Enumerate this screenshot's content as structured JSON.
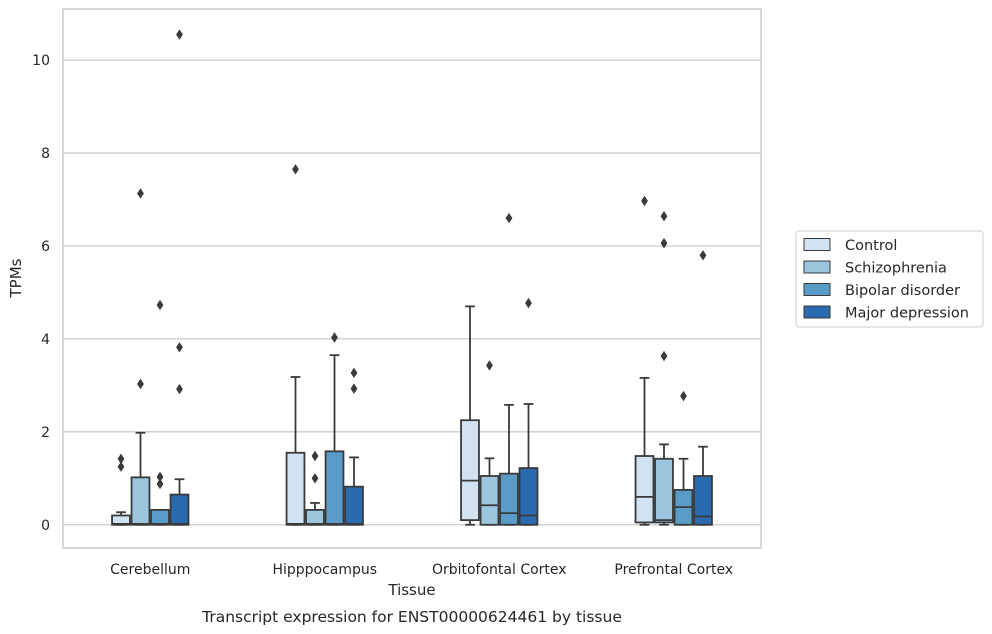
{
  "caption": "Transcript expression for ENST00000624461 by tissue",
  "chart_data": {
    "type": "box",
    "xlabel": "Tissue",
    "ylabel": "TPMs",
    "ylim": [
      -0.5,
      11.1
    ],
    "yticks": [
      0,
      2,
      4,
      6,
      8,
      10
    ],
    "grid": "horizontal",
    "legend_position": "right",
    "categories": [
      "Cerebellum",
      "Hipppocampus",
      "Orbitofontal Cortex",
      "Prefrontal Cortex"
    ],
    "series": [
      {
        "name": "Control",
        "color": "#d1e2f2",
        "boxes": [
          {
            "whislo": 0,
            "q1": 0,
            "med": 0.02,
            "q3": 0.2,
            "whishi": 0.27,
            "fliers": [
              1.25,
              1.42
            ]
          },
          {
            "whislo": 0,
            "q1": 0,
            "med": 0.02,
            "q3": 1.55,
            "whishi": 3.18,
            "fliers": [
              7.65
            ]
          },
          {
            "whislo": 0,
            "q1": 0.1,
            "med": 0.95,
            "q3": 2.25,
            "whishi": 4.7,
            "fliers": []
          },
          {
            "whislo": 0,
            "q1": 0.05,
            "med": 0.6,
            "q3": 1.48,
            "whishi": 3.16,
            "fliers": [
              6.97
            ]
          }
        ]
      },
      {
        "name": "Schizophrenia",
        "color": "#9bc6de",
        "boxes": [
          {
            "whislo": 0,
            "q1": 0,
            "med": 0.02,
            "q3": 1.02,
            "whishi": 1.98,
            "fliers": [
              3.03,
              7.13
            ]
          },
          {
            "whislo": 0,
            "q1": 0,
            "med": 0.02,
            "q3": 0.32,
            "whishi": 0.47,
            "fliers": [
              1.0,
              1.48
            ]
          },
          {
            "whislo": 0,
            "q1": 0,
            "med": 0.42,
            "q3": 1.05,
            "whishi": 1.43,
            "fliers": [
              3.43
            ]
          },
          {
            "whislo": 0,
            "q1": 0.05,
            "med": 0.1,
            "q3": 1.42,
            "whishi": 1.73,
            "fliers": [
              3.63,
              6.06,
              6.64
            ]
          }
        ]
      },
      {
        "name": "Bipolar disorder",
        "color": "#5a9cc8",
        "boxes": [
          {
            "whislo": 0,
            "q1": 0,
            "med": 0.02,
            "q3": 0.32,
            "whishi": 0.32,
            "fliers": [
              0.88,
              1.03,
              4.73
            ]
          },
          {
            "whislo": 0,
            "q1": 0,
            "med": 0.02,
            "q3": 1.58,
            "whishi": 3.65,
            "fliers": [
              4.03
            ]
          },
          {
            "whislo": 0,
            "q1": 0,
            "med": 0.25,
            "q3": 1.1,
            "whishi": 2.58,
            "fliers": [
              6.6
            ]
          },
          {
            "whislo": 0,
            "q1": 0,
            "med": 0.38,
            "q3": 0.75,
            "whishi": 1.42,
            "fliers": [
              2.77
            ]
          }
        ]
      },
      {
        "name": "Major depression",
        "color": "#2a6aae",
        "boxes": [
          {
            "whislo": 0,
            "q1": 0,
            "med": 0.02,
            "q3": 0.65,
            "whishi": 0.98,
            "fliers": [
              2.92,
              3.82,
              10.55
            ]
          },
          {
            "whislo": 0,
            "q1": 0,
            "med": 0.02,
            "q3": 0.82,
            "whishi": 1.45,
            "fliers": [
              2.93,
              3.27
            ]
          },
          {
            "whislo": 0,
            "q1": 0,
            "med": 0.2,
            "q3": 1.22,
            "whishi": 2.6,
            "fliers": [
              4.77
            ]
          },
          {
            "whislo": 0,
            "q1": 0,
            "med": 0.18,
            "q3": 1.05,
            "whishi": 1.68,
            "fliers": [
              5.8
            ]
          }
        ]
      }
    ]
  }
}
